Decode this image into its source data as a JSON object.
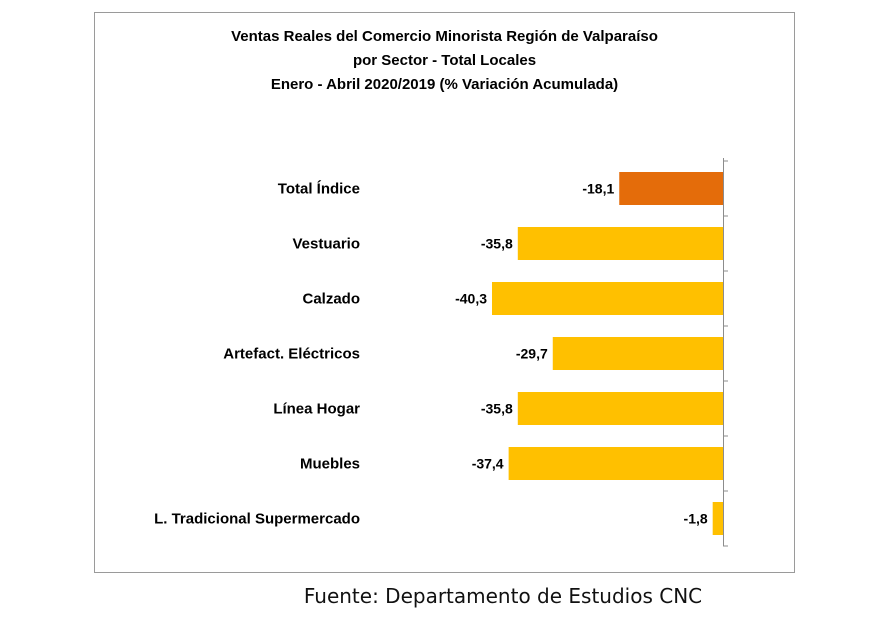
{
  "chart_data": {
    "type": "bar",
    "orientation": "horizontal",
    "title_lines": [
      "Ventas Reales del Comercio Minorista Región de Valparaíso",
      "por Sector  - Total Locales",
      "Enero - Abril  2020/2019 (% Variación Acumulada)"
    ],
    "categories": [
      "Total Índice",
      "Vestuario",
      "Calzado",
      "Artefact. Eléctricos",
      "Línea Hogar",
      "Muebles",
      "L. Tradicional Supermercado"
    ],
    "values": [
      -18.1,
      -35.8,
      -40.3,
      -29.7,
      -35.8,
      -37.4,
      -1.8
    ],
    "value_labels": [
      "-18,1",
      "-35,8",
      "-40,3",
      "-29,7",
      "-35,8",
      "-37,4",
      "-1,8"
    ],
    "bar_colors": [
      "#E46C0A",
      "#FFC000",
      "#FFC000",
      "#FFC000",
      "#FFC000",
      "#FFC000",
      "#FFC000"
    ],
    "xlim": [
      -40.3,
      0
    ],
    "grid": false,
    "legend": "none"
  },
  "source_text": "Fuente: Departamento de Estudios CNC"
}
